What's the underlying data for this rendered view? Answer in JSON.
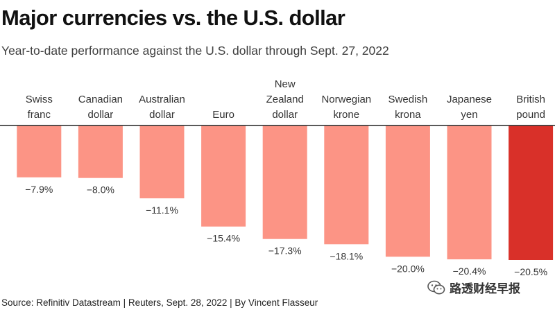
{
  "title": "Major currencies vs. the U.S. dollar",
  "subtitle": "Year-to-date performance against the U.S. dollar through Sept. 27, 2022",
  "source": "Source: Refinitiv Datastream | Reuters, Sept. 28, 2022 | By Vincent Flasseur",
  "watermark": {
    "text": "路透财经早报",
    "icon": "wechat-icon"
  },
  "colors": {
    "bar": "#fc9485",
    "highlight": "#d93029",
    "axis": "#222222",
    "label": "#333333"
  },
  "chart_data": {
    "type": "bar",
    "title": "Major currencies vs. the U.S. dollar",
    "subtitle": "Year-to-date performance against the U.S. dollar through Sept. 27, 2022",
    "xlabel": "",
    "ylabel": "",
    "unit": "%",
    "grid": false,
    "legend": "none",
    "ylim": [
      -20.5,
      0
    ],
    "categories": [
      [
        "Swiss",
        "franc"
      ],
      [
        "Canadian",
        "dollar"
      ],
      [
        "Australian",
        "dollar"
      ],
      [
        "Euro"
      ],
      [
        "New",
        "Zealand",
        "dollar"
      ],
      [
        "Norwegian",
        "krone"
      ],
      [
        "Swedish",
        "krona"
      ],
      [
        "Japanese",
        "yen"
      ],
      [
        "British",
        "pound"
      ]
    ],
    "values": [
      -7.9,
      -8.0,
      -11.1,
      -15.4,
      -17.3,
      -18.1,
      -20.0,
      -20.4,
      -20.5
    ],
    "value_labels": [
      "−7.9%",
      "−8.0%",
      "−11.1%",
      "−15.4%",
      "−17.3%",
      "−18.1%",
      "−20.0%",
      "−20.4%",
      "−20.5%"
    ],
    "highlight_index": 8
  }
}
